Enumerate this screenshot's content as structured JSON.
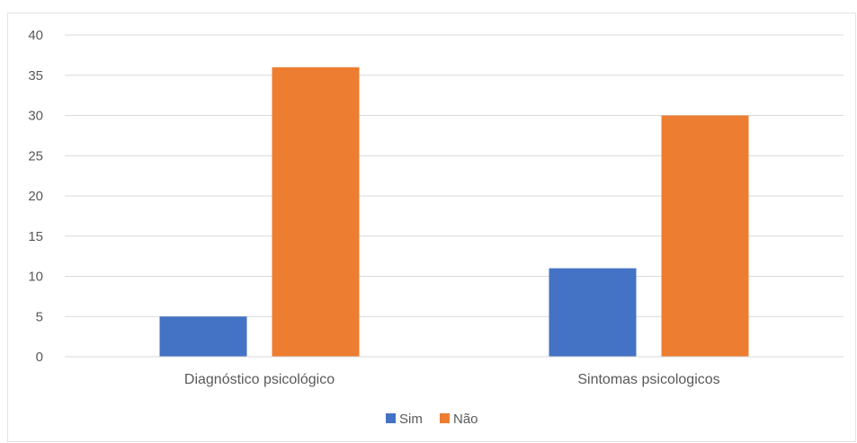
{
  "chart_data": {
    "type": "bar",
    "categories": [
      "Diagnóstico psicológico",
      "Sintomas psicologicos"
    ],
    "series": [
      {
        "name": "Sim",
        "color": "#4472C4",
        "values": [
          5,
          11
        ]
      },
      {
        "name": "Não",
        "color": "#ED7D31",
        "values": [
          36,
          30
        ]
      }
    ],
    "title": "",
    "xlabel": "",
    "ylabel": "",
    "ylim": [
      0,
      40
    ],
    "yticks": [
      0,
      5,
      10,
      15,
      20,
      25,
      30,
      35,
      40
    ],
    "grid": true,
    "legend_position": "bottom"
  }
}
